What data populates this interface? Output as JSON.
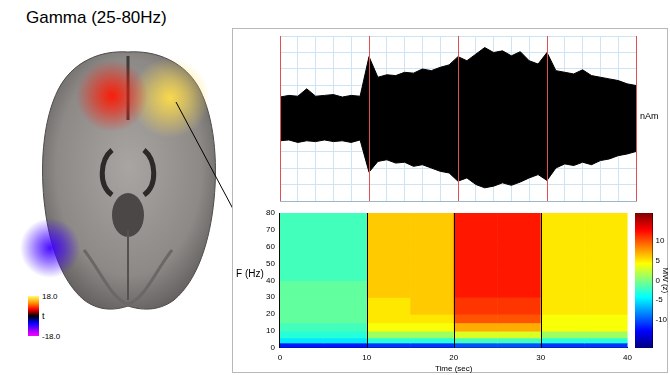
{
  "title": "Gamma (25-80Hz)",
  "brain_map": {
    "colorbar": {
      "label": "t",
      "range": [
        -18,
        18
      ],
      "ticks": [
        {
          "value": 18,
          "label": "18.0"
        },
        {
          "value": -18,
          "label": "-18.0"
        }
      ]
    },
    "regions": [
      {
        "t": 16
      },
      {
        "t": 7
      },
      {
        "t": -9
      }
    ]
  },
  "chart_data": [
    {
      "type": "line",
      "y_label": "nAm",
      "color": "#000000",
      "x": [
        0,
        1,
        2,
        3,
        4,
        5,
        6,
        7,
        8,
        9,
        10,
        11,
        12,
        13,
        14,
        15,
        16,
        17,
        18,
        19,
        20,
        21,
        22,
        23,
        24,
        25,
        26,
        27,
        28,
        29,
        30,
        31,
        32,
        33,
        34,
        35,
        36,
        37,
        38,
        39,
        40
      ],
      "upper": [
        2.6,
        2.8,
        2.7,
        3.6,
        2.7,
        2.8,
        2.9,
        2.6,
        2.8,
        2.7,
        7.5,
        5.0,
        5.3,
        5.2,
        5.6,
        5.5,
        6.0,
        5.8,
        6.2,
        6.5,
        7.5,
        7.0,
        7.8,
        8.6,
        8.0,
        8.2,
        7.6,
        8.1,
        7.0,
        6.6,
        8.0,
        5.8,
        5.6,
        5.4,
        5.9,
        5.2,
        5.0,
        4.8,
        4.6,
        4.2,
        4.0
      ],
      "lower": [
        -2.7,
        -2.6,
        -2.9,
        -2.7,
        -2.8,
        -2.6,
        -2.8,
        -2.7,
        -2.9,
        -2.6,
        -6.5,
        -5.2,
        -5.0,
        -5.4,
        -5.3,
        -5.8,
        -5.6,
        -6.0,
        -6.4,
        -6.6,
        -7.6,
        -7.2,
        -8.0,
        -8.4,
        -8.2,
        -7.8,
        -8.1,
        -7.7,
        -7.2,
        -6.8,
        -7.5,
        -6.0,
        -5.5,
        -5.7,
        -5.3,
        -5.6,
        -5.1,
        -4.9,
        -4.5,
        -4.3,
        -4.0
      ],
      "event_times": [
        0,
        10,
        20,
        30,
        40
      ],
      "xlim": [
        0,
        40
      ],
      "ylim": [
        -10,
        10
      ],
      "xticks": [
        0,
        2,
        4,
        6,
        8,
        10,
        12,
        14,
        16,
        18,
        20,
        22,
        24,
        26,
        28,
        30,
        32,
        34,
        36,
        38,
        40
      ],
      "yticks": [
        -10,
        -8,
        -6,
        -4,
        -2,
        0,
        2,
        4,
        6,
        8,
        10
      ],
      "grid": true,
      "tick_labels": false
    },
    {
      "type": "heatmap",
      "x_label": "Time (sec)",
      "y_label": "F (Hz)",
      "time_bins": [
        0,
        5,
        10,
        15,
        20,
        25,
        30,
        35,
        40
      ],
      "freq_bins": [
        0,
        3,
        6,
        10,
        15,
        20,
        30,
        40,
        50,
        60,
        70,
        80
      ],
      "cells": [
        [
          -12,
          -12,
          -11,
          -11,
          -10,
          -10,
          -11,
          -11
        ],
        [
          -5,
          -5,
          -3,
          -3,
          -2,
          -2,
          -3,
          -3
        ],
        [
          -3,
          -3,
          1,
          1,
          3,
          3,
          1,
          1
        ],
        [
          -2,
          -2,
          4,
          4,
          7,
          7,
          4,
          4
        ],
        [
          -1,
          -1,
          5,
          5,
          10,
          10,
          4,
          4
        ],
        [
          -1,
          -1,
          5,
          6,
          11,
          11,
          5,
          5
        ],
        [
          -1,
          -1,
          6,
          6,
          12,
          12,
          5,
          5
        ],
        [
          -2,
          -2,
          6,
          6,
          12,
          12,
          5,
          5
        ],
        [
          -2,
          -2,
          6,
          6,
          12,
          12,
          5,
          5
        ],
        [
          -2,
          -2,
          6,
          6,
          12,
          12,
          5,
          5
        ],
        [
          -2,
          -2,
          6,
          6,
          12,
          12,
          5,
          5
        ]
      ],
      "event_times": [
        10,
        20,
        30
      ],
      "xlim": [
        0,
        40
      ],
      "ylim": [
        0,
        80
      ],
      "xticks": [
        0,
        10,
        20,
        30,
        40
      ],
      "yticks": [
        0,
        10,
        20,
        30,
        40,
        50,
        60,
        70,
        80
      ],
      "grid": false,
      "colorbar": {
        "label": "MW (z)",
        "range": [
          -17,
          17
        ],
        "ticks": [
          -10,
          -5,
          0,
          5,
          10
        ]
      }
    }
  ]
}
